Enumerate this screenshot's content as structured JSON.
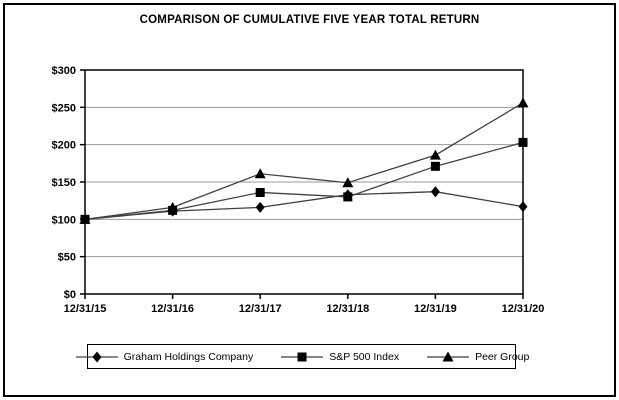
{
  "chart_data": {
    "type": "line",
    "title": "COMPARISON OF CUMULATIVE FIVE YEAR TOTAL RETURN",
    "x": [
      "12/31/15",
      "12/31/16",
      "12/31/17",
      "12/31/18",
      "12/31/19",
      "12/31/20"
    ],
    "series": [
      {
        "name": "Graham Holdings Company",
        "marker": "diamond",
        "values": [
          100,
          111,
          116,
          133,
          137,
          117
        ]
      },
      {
        "name": "S&P 500 Index",
        "marker": "square",
        "values": [
          100,
          112,
          136,
          130,
          171,
          203
        ]
      },
      {
        "name": "Peer Group",
        "marker": "triangle",
        "values": [
          100,
          116,
          161,
          149,
          186,
          256
        ]
      }
    ],
    "ylim": [
      0,
      300
    ],
    "ytick_step": 50,
    "ytick_labels": [
      "$0",
      "$50",
      "$100",
      "$150",
      "$200",
      "$250",
      "$300"
    ],
    "grid": true,
    "legend_position": "bottom",
    "colors": {
      "line": "#404040",
      "marker": "#000000",
      "grid": "#999999",
      "axis": "#000000",
      "background": "#ffffff"
    }
  }
}
